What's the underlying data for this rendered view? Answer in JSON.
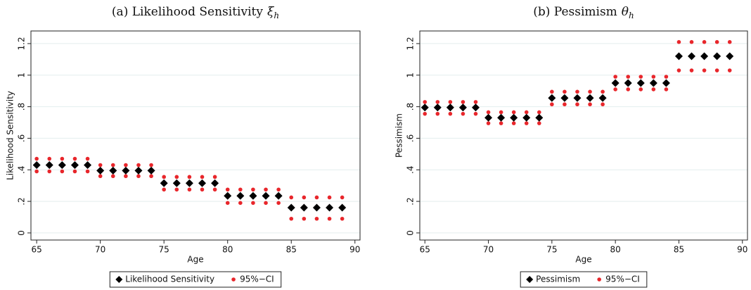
{
  "chart_data": [
    {
      "type": "scatter",
      "title": "(a)  Likelihood Sensitivity",
      "title_symbol": "ξ",
      "title_subscript": "h",
      "x_label": "Age",
      "y_label": "Likelihood Sensitivity",
      "x": [
        65,
        66,
        67,
        68,
        69,
        70,
        71,
        72,
        73,
        74,
        75,
        76,
        77,
        78,
        79,
        80,
        81,
        82,
        83,
        84,
        85,
        86,
        87,
        88,
        89
      ],
      "series": [
        {
          "name": "Likelihood Sensitivity",
          "color": "#000000",
          "values": [
            0.43,
            0.43,
            0.43,
            0.43,
            0.43,
            0.395,
            0.395,
            0.395,
            0.395,
            0.395,
            0.315,
            0.315,
            0.315,
            0.315,
            0.315,
            0.235,
            0.235,
            0.235,
            0.235,
            0.235,
            0.16,
            0.16,
            0.16,
            0.16,
            0.16
          ]
        },
        {
          "name": "95%−CI",
          "color": "#e8262b",
          "lower": [
            0.39,
            0.39,
            0.39,
            0.39,
            0.39,
            0.36,
            0.36,
            0.36,
            0.36,
            0.36,
            0.275,
            0.275,
            0.275,
            0.275,
            0.275,
            0.19,
            0.19,
            0.19,
            0.19,
            0.19,
            0.09,
            0.09,
            0.09,
            0.09,
            0.09
          ],
          "upper": [
            0.47,
            0.47,
            0.47,
            0.47,
            0.47,
            0.43,
            0.43,
            0.43,
            0.43,
            0.43,
            0.355,
            0.355,
            0.355,
            0.355,
            0.355,
            0.275,
            0.275,
            0.275,
            0.275,
            0.275,
            0.225,
            0.225,
            0.225,
            0.225,
            0.225
          ]
        }
      ],
      "xlim": [
        64.55,
        90.4
      ],
      "xticks": [
        65,
        70,
        75,
        80,
        85,
        90
      ],
      "ylim": [
        -0.045,
        1.28
      ],
      "yticks": [
        0,
        {
          "value": 0.2,
          "label": ".2"
        },
        {
          "value": 0.4,
          "label": ".4"
        },
        {
          "value": 0.6,
          "label": ".6"
        },
        {
          "value": 0.8,
          "label": ".8"
        },
        1,
        1.2
      ],
      "grid": true
    },
    {
      "type": "scatter",
      "title": "(b)  Pessimism",
      "title_symbol": "θ",
      "title_subscript": "h",
      "x_label": "Age",
      "y_label": "Pessimism",
      "x": [
        65,
        66,
        67,
        68,
        69,
        70,
        71,
        72,
        73,
        74,
        75,
        76,
        77,
        78,
        79,
        80,
        81,
        82,
        83,
        84,
        85,
        86,
        87,
        88,
        89
      ],
      "series": [
        {
          "name": "Pessimism",
          "color": "#000000",
          "values": [
            0.795,
            0.795,
            0.795,
            0.795,
            0.795,
            0.73,
            0.73,
            0.73,
            0.73,
            0.73,
            0.855,
            0.855,
            0.855,
            0.855,
            0.855,
            0.95,
            0.95,
            0.95,
            0.95,
            0.95,
            1.12,
            1.12,
            1.12,
            1.12,
            1.12
          ]
        },
        {
          "name": "95%−CI",
          "color": "#e8262b",
          "lower": [
            0.755,
            0.755,
            0.755,
            0.755,
            0.755,
            0.695,
            0.695,
            0.695,
            0.695,
            0.695,
            0.815,
            0.815,
            0.815,
            0.815,
            0.815,
            0.91,
            0.91,
            0.91,
            0.91,
            0.91,
            1.03,
            1.03,
            1.03,
            1.03,
            1.03
          ],
          "upper": [
            0.83,
            0.83,
            0.83,
            0.83,
            0.83,
            0.765,
            0.765,
            0.765,
            0.765,
            0.765,
            0.895,
            0.895,
            0.895,
            0.895,
            0.895,
            0.99,
            0.99,
            0.99,
            0.99,
            0.99,
            1.21,
            1.21,
            1.21,
            1.21,
            1.21
          ]
        }
      ],
      "xlim": [
        64.6,
        90.4
      ],
      "xticks": [
        65,
        70,
        75,
        80,
        85,
        90
      ],
      "ylim": [
        -0.045,
        1.28
      ],
      "yticks": [
        0,
        {
          "value": 0.2,
          "label": ".2"
        },
        {
          "value": 0.4,
          "label": ".4"
        },
        {
          "value": 0.6,
          "label": ".6"
        },
        {
          "value": 0.8,
          "label": ".8"
        },
        1,
        1.2
      ],
      "grid": true
    }
  ]
}
